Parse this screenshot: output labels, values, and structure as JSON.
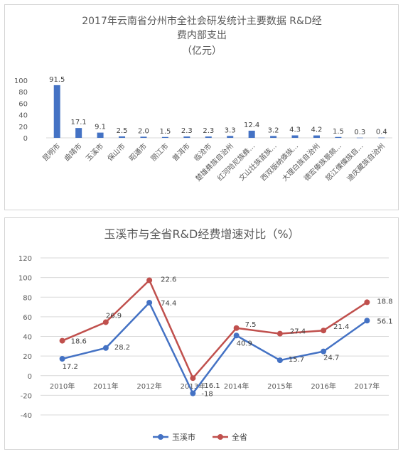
{
  "chart_data": [
    {
      "type": "bar",
      "title_lines": [
        "2017年云南省分州市全社会研发统计主要数据 R&D经",
        "费内部支出",
        "（亿元）"
      ],
      "categories": [
        "昆明市",
        "曲靖市",
        "玉溪市",
        "保山市",
        "昭通市",
        "丽江市",
        "普洱市",
        "临沧市",
        "楚雄彝族自治州",
        "红河哈尼族彝...",
        "文山壮族苗族...",
        "西双版纳傣族...",
        "大理白族自治州",
        "德宏傣族景颇...",
        "怒江傈僳族自...",
        "迪庆藏族自治州"
      ],
      "values": [
        91.5,
        17.1,
        9.1,
        2.5,
        2.0,
        1.5,
        2.3,
        2.3,
        3.3,
        12.4,
        3.2,
        4.3,
        4.2,
        1.5,
        0.3,
        0.4
      ],
      "value_labels": [
        "91.5",
        "17.1",
        "9.1",
        "2.5",
        "2.0",
        "1.5",
        "2.3",
        "2.3",
        "3.3",
        "12.4",
        "3.2",
        "4.3",
        "4.2",
        "1.5",
        "0.3",
        "0.4"
      ],
      "ylim": [
        0,
        100
      ],
      "yticks": [
        "0",
        "20",
        "40",
        "60",
        "80",
        "100"
      ],
      "bar_color": "#4472c4",
      "grid": false
    },
    {
      "type": "line",
      "title": "玉溪市与全省R&D经费增速对比（%）",
      "categories": [
        "2010年",
        "2011年",
        "2012年",
        "2013年",
        "2014年",
        "2015年",
        "2016年",
        "2017年"
      ],
      "ylim": [
        -40,
        120
      ],
      "yticks": [
        "-40",
        "-20",
        "0",
        "20",
        "40",
        "60",
        "80",
        "100",
        "120"
      ],
      "grid": true,
      "legend_position": "bottom",
      "series": [
        {
          "name": "玉溪市",
          "color": "#4472c4",
          "values": [
            17.2,
            28.2,
            74.4,
            -18,
            40.9,
            15.7,
            24.7,
            56.1
          ],
          "labels": [
            "17.2",
            "28.2",
            "74.4",
            "-18",
            "40.9",
            "15.7",
            "24.7",
            "56.1"
          ]
        },
        {
          "name": "全省",
          "color": "#c0504d",
          "values": [
            35.6,
            54.5,
            97.2,
            -2.5,
            48.5,
            42.8,
            46.0,
            74.8
          ],
          "labels": [
            "18.6",
            "26.9",
            "22.6",
            "16.1",
            "7.5",
            "27.4",
            "21.4",
            "18.8"
          ]
        }
      ]
    }
  ]
}
